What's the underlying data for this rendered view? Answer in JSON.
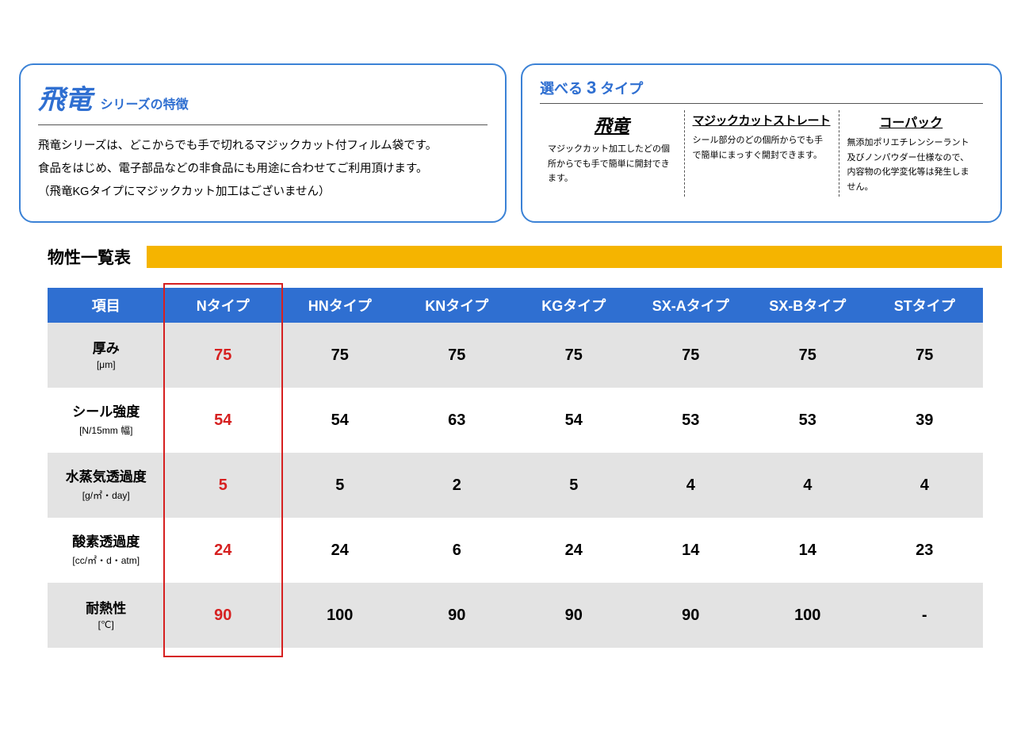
{
  "colors": {
    "panel_border": "#3b82d6",
    "header_blue": "#2f6fd1",
    "yellow_bar": "#f5b400",
    "table_header_bg": "#2f6fd1",
    "table_header_text": "#ffffff",
    "row_even_bg": "#e3e3e3",
    "row_odd_bg": "#ffffff",
    "highlight_red": "#d62020"
  },
  "left_panel": {
    "brand": "飛竜",
    "suffix": "シリーズの特徴",
    "line1": "飛竜シリーズは、どこからでも手で切れるマジックカット付フィルム袋です。",
    "line2": "食品をはじめ、電子部品などの非食品にも用途に合わせてご利用頂けます。",
    "line3": "（飛竜KGタイプにマジックカット加工はございません）"
  },
  "right_panel": {
    "header_pre": "選べる ",
    "header_num": "3",
    "header_post": " タイプ",
    "types": [
      {
        "title": "飛竜",
        "desc": "マジックカット加工したどの個所からでも手で簡単に開封できます。"
      },
      {
        "title": "マジックカットストレート",
        "desc": "シール部分のどの個所からでも手で簡単にまっすぐ開封できます。"
      },
      {
        "title": "コーパック",
        "desc": "無添加ポリエチレンシーラント及びノンパウダー仕様なので、内容物の化学変化等は発生しません。"
      }
    ]
  },
  "section_title": "物性一覧表",
  "table": {
    "highlight_column_index": 1,
    "columns": [
      "項目",
      "Nタイプ",
      "HNタイプ",
      "KNタイプ",
      "KGタイプ",
      "SX-Aタイプ",
      "SX-Bタイプ",
      "STタイプ"
    ],
    "rows": [
      {
        "label": "厚み",
        "unit": "[μm]",
        "values": [
          "75",
          "75",
          "75",
          "75",
          "75",
          "75",
          "75"
        ]
      },
      {
        "label": "シール強度",
        "unit": "[N/15mm 幅]",
        "values": [
          "54",
          "54",
          "63",
          "54",
          "53",
          "53",
          "39"
        ]
      },
      {
        "label": "水蒸気透過度",
        "unit": "[g/㎡・day]",
        "values": [
          "5",
          "5",
          "2",
          "5",
          "4",
          "4",
          "4"
        ]
      },
      {
        "label": "酸素透過度",
        "unit": "[cc/㎡・d・atm]",
        "values": [
          "24",
          "24",
          "6",
          "24",
          "14",
          "14",
          "23"
        ]
      },
      {
        "label": "耐熱性",
        "unit": "[℃]",
        "values": [
          "90",
          "100",
          "90",
          "90",
          "90",
          "100",
          "-"
        ]
      }
    ]
  }
}
